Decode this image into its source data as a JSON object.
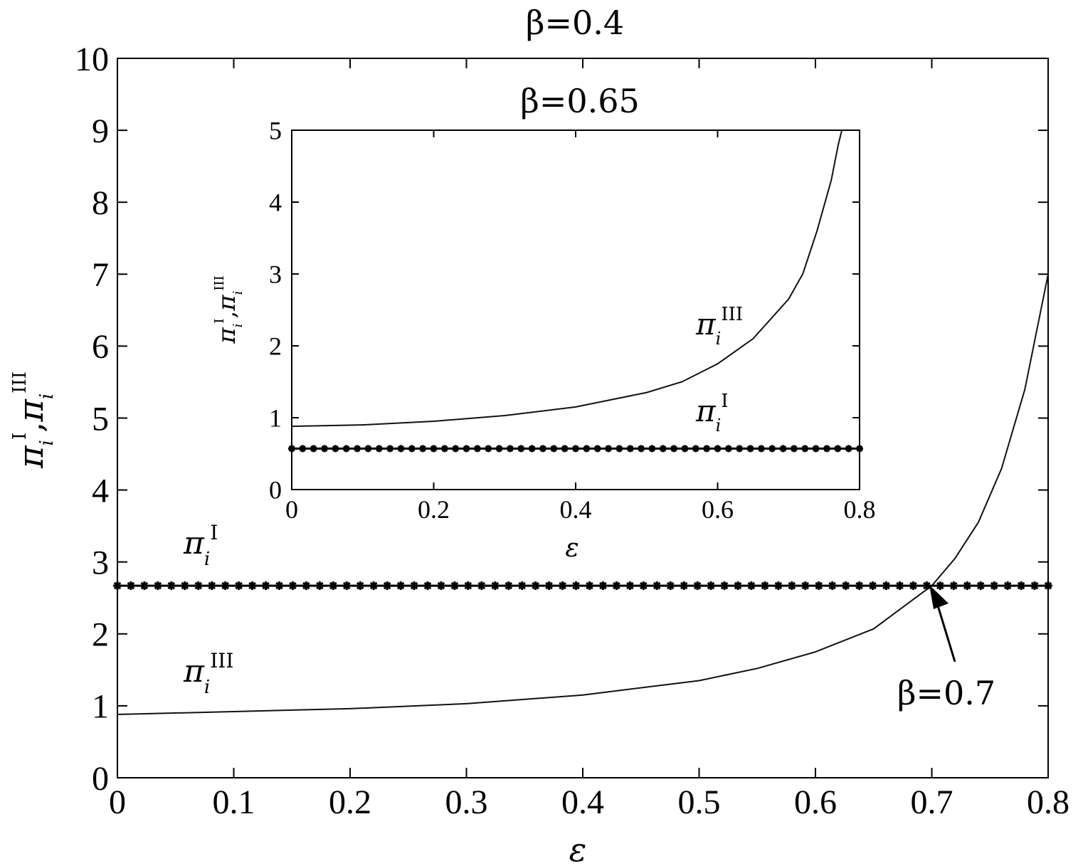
{
  "chart_data": [
    {
      "type": "line",
      "title": "β=0.4",
      "xlabel": "ε",
      "ylabel": "π_i^I, π_i^III",
      "ylabel_parts": {
        "pi1": "π",
        "sub1": "i",
        "sup1": "I",
        "comma": ",",
        "pi2": "π",
        "sub2": "i",
        "sup2": "III"
      },
      "xlim": [
        0,
        0.8
      ],
      "ylim": [
        0,
        10
      ],
      "x_ticks": [
        "0",
        "0.1",
        "0.2",
        "0.3",
        "0.4",
        "0.5",
        "0.6",
        "0.7",
        "0.8"
      ],
      "y_ticks": [
        "0",
        "1",
        "2",
        "3",
        "4",
        "5",
        "6",
        "7",
        "8",
        "9",
        "10"
      ],
      "grid": false,
      "series": [
        {
          "name": "π_i^I",
          "label": {
            "pi": "π",
            "sub": "i",
            "sup": "I"
          },
          "style": "star-markers",
          "x": [
            0,
            0.8
          ],
          "y": [
            2.67,
            2.67
          ]
        },
        {
          "name": "π_i^III",
          "label": {
            "pi": "π",
            "sub": "i",
            "sup": "III"
          },
          "style": "line",
          "x": [
            0,
            0.1,
            0.2,
            0.3,
            0.4,
            0.5,
            0.55,
            0.6,
            0.65,
            0.7,
            0.72,
            0.74,
            0.76,
            0.78,
            0.8
          ],
          "y": [
            0.88,
            0.92,
            0.96,
            1.03,
            1.15,
            1.35,
            1.52,
            1.75,
            2.07,
            2.67,
            3.05,
            3.55,
            4.3,
            5.4,
            7.0
          ]
        }
      ],
      "annotations": [
        {
          "text": "β=0.7",
          "points_to": {
            "x": 0.7,
            "y": 2.67
          }
        }
      ]
    },
    {
      "type": "line",
      "title": "β=0.65",
      "xlabel": "ε",
      "ylabel": "π_i^I, π_i^III",
      "ylabel_parts": {
        "pi1": "π",
        "sub1": "i",
        "sup1": "I",
        "comma": ",",
        "pi2": "π",
        "sub2": "i",
        "sup2": "III"
      },
      "xlim": [
        0,
        0.8
      ],
      "ylim": [
        0,
        5
      ],
      "x_ticks": [
        "0",
        "0.2",
        "0.4",
        "0.6",
        "0.8"
      ],
      "y_ticks": [
        "0",
        "1",
        "2",
        "3",
        "4",
        "5"
      ],
      "grid": false,
      "series": [
        {
          "name": "π_i^I",
          "label": {
            "pi": "π",
            "sub": "i",
            "sup": "I"
          },
          "style": "star-markers",
          "x": [
            0,
            0.8
          ],
          "y": [
            0.57,
            0.57
          ]
        },
        {
          "name": "π_i^III",
          "label": {
            "pi": "π",
            "sub": "i",
            "sup": "III"
          },
          "style": "line",
          "x": [
            0,
            0.1,
            0.2,
            0.3,
            0.4,
            0.5,
            0.55,
            0.6,
            0.65,
            0.7,
            0.72,
            0.74,
            0.76,
            0.77,
            0.775
          ],
          "y": [
            0.88,
            0.9,
            0.95,
            1.03,
            1.15,
            1.35,
            1.5,
            1.75,
            2.1,
            2.65,
            3.0,
            3.6,
            4.3,
            4.8,
            5.0
          ]
        }
      ]
    }
  ]
}
